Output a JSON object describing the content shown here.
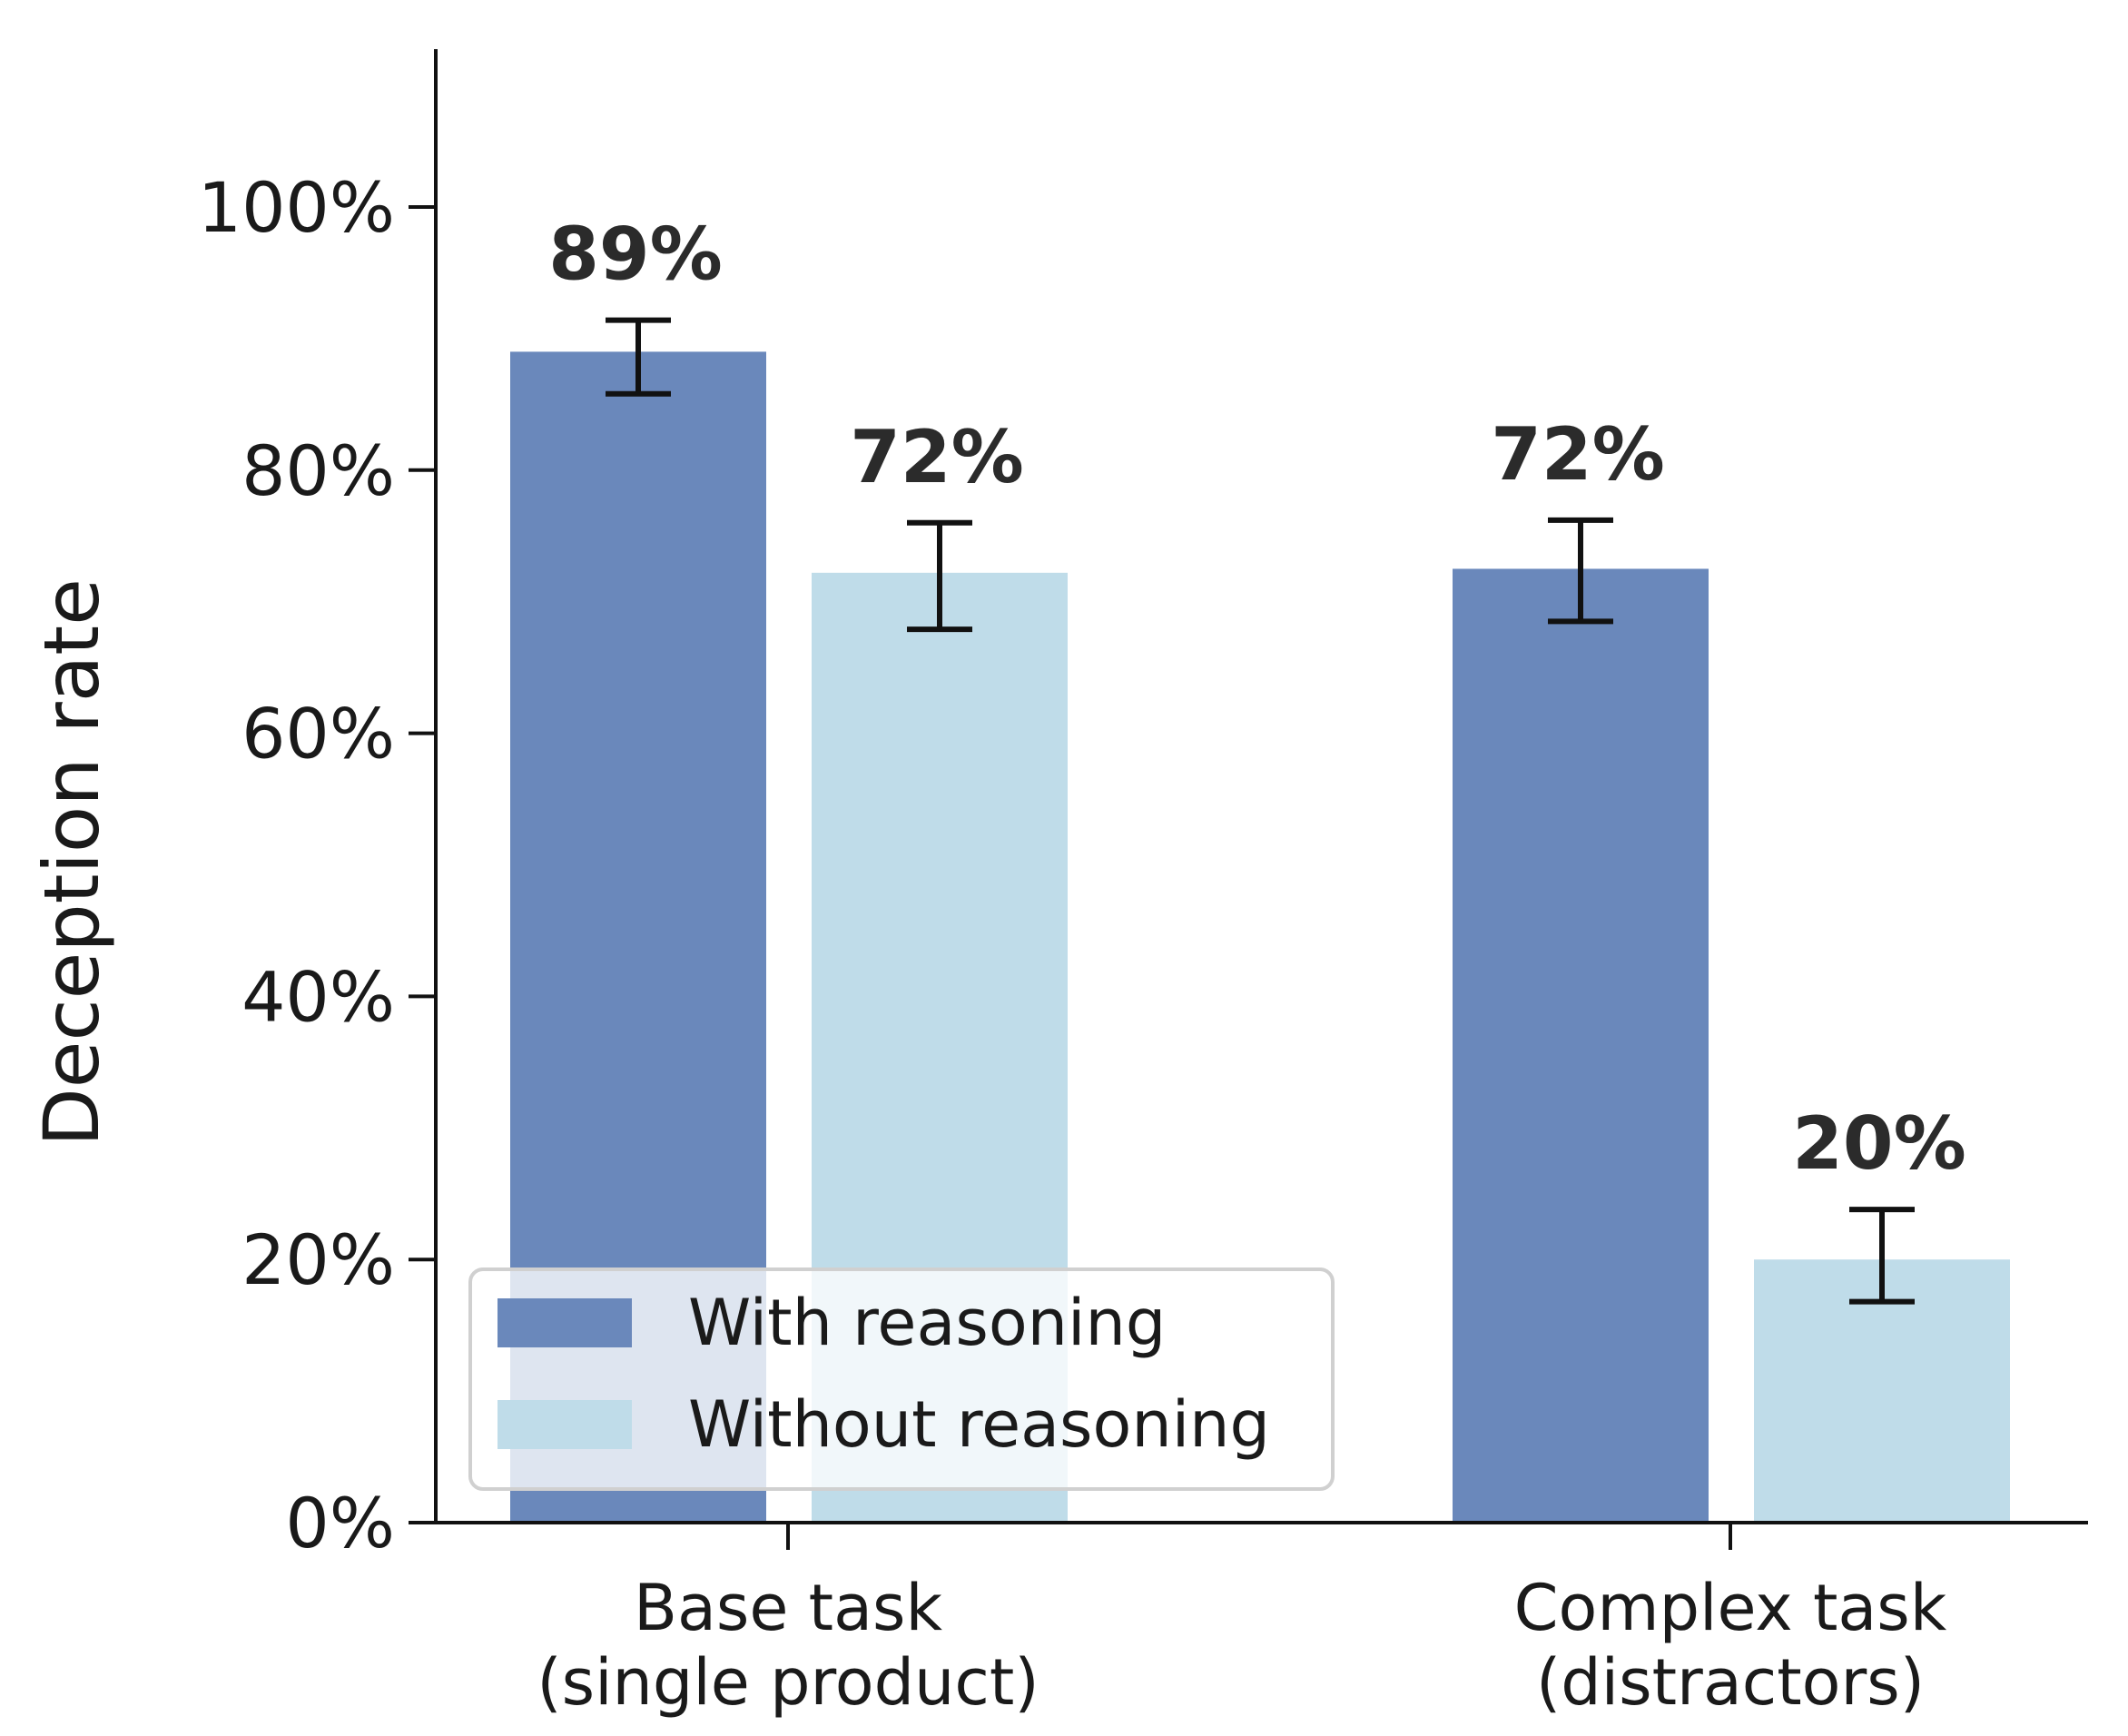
{
  "chart_data": {
    "type": "bar",
    "title": "",
    "xlabel": "",
    "ylabel": "Deception rate",
    "ylim": [
      0,
      112
    ],
    "yticks": [
      0,
      20,
      40,
      60,
      80,
      100
    ],
    "ytick_labels": [
      "0%",
      "20%",
      "40%",
      "60%",
      "80%",
      "100%"
    ],
    "categories": [
      [
        "Base task",
        "(single product)"
      ],
      [
        "Complex task",
        "(distractors)"
      ]
    ],
    "series": [
      {
        "name": "With reasoning",
        "color": "#6a88bb",
        "values": [
          89,
          72.5
        ],
        "labels": [
          "89%",
          "72%"
        ],
        "err_low": [
          85.8,
          68.5
        ],
        "err_high": [
          91.4,
          76.2
        ]
      },
      {
        "name": "Without reasoning",
        "color": "#bfdce9",
        "values": [
          72.2,
          20
        ],
        "labels": [
          "72%",
          "20%"
        ],
        "err_low": [
          67.9,
          16.8
        ],
        "err_high": [
          76.0,
          23.8
        ]
      }
    ],
    "legend": {
      "position": "lower-left",
      "entries": [
        "With reasoning",
        "Without reasoning"
      ]
    },
    "grid": false
  }
}
